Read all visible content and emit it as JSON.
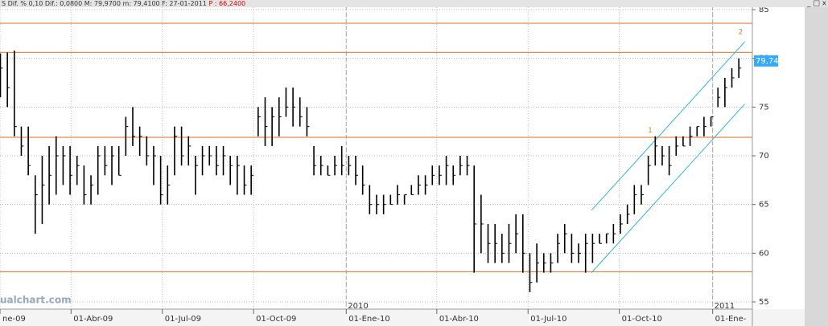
{
  "header": {
    "text": "S Dif. % 0,10 Dif.: 0,0800 M: 79,9700 m: 79,4100 F: 27-01-2011",
    "price": "P : 66,2400"
  },
  "chart_data": {
    "type": "ohlc",
    "high": [
      80.5,
      80.6,
      80.8,
      73,
      73,
      68,
      70,
      71,
      72,
      71,
      71,
      70,
      69,
      68,
      71,
      71,
      71,
      71,
      74,
      75,
      73,
      72,
      71,
      70,
      69,
      73,
      73,
      72,
      70,
      71,
      71,
      71,
      71,
      70,
      70,
      69,
      69,
      75,
      76,
      75,
      76,
      77,
      77,
      76,
      75,
      71,
      70,
      69,
      70,
      71,
      70,
      70,
      69,
      67,
      66,
      66,
      66,
      67,
      66,
      67,
      68,
      68,
      69,
      69,
      70,
      69,
      70,
      70,
      69,
      66,
      63,
      63,
      62,
      63,
      64,
      64,
      60,
      61,
      60,
      60,
      62,
      63,
      62,
      61,
      62,
      62,
      62,
      62,
      63,
      64,
      65,
      67,
      67,
      70,
      72,
      71,
      71,
      72,
      72,
      73,
      73,
      74,
      74,
      77,
      78,
      79,
      80
    ],
    "low": [
      76,
      75,
      72,
      70,
      68,
      62,
      63,
      65,
      66,
      67,
      66,
      67,
      65,
      65,
      66,
      68,
      67,
      68,
      70,
      71,
      70,
      69,
      67,
      65,
      65,
      68,
      69,
      69,
      66,
      68,
      69,
      68,
      68,
      67,
      66,
      66,
      66,
      72,
      71,
      71,
      72,
      74,
      73,
      73,
      72,
      68,
      68,
      68,
      68,
      68,
      68,
      67,
      66,
      64,
      64,
      64,
      65,
      65,
      65,
      66,
      66,
      66,
      67,
      67,
      67,
      67,
      68,
      68,
      58,
      60,
      59,
      59,
      59,
      59,
      60,
      58,
      56,
      57,
      58,
      58,
      59,
      60,
      59,
      59,
      58,
      59,
      61,
      61,
      61,
      62,
      63,
      64,
      65,
      67,
      69,
      69,
      68,
      70,
      71,
      71,
      72,
      72,
      73,
      75,
      75,
      77,
      78
    ],
    "close": [
      79,
      77,
      73,
      71,
      69,
      66,
      67,
      68,
      70,
      70,
      68,
      69,
      66,
      67,
      70,
      69,
      70,
      68,
      73,
      72,
      72,
      70,
      70,
      66,
      67,
      72,
      70,
      71,
      69,
      70,
      70,
      69,
      70,
      69,
      69,
      67,
      68,
      74,
      73,
      74,
      74,
      75,
      75,
      74,
      73,
      69,
      69,
      68,
      69,
      69,
      69,
      68,
      67,
      65,
      65,
      65,
      65,
      66,
      66,
      66,
      67,
      67,
      68,
      68,
      69,
      68,
      69,
      69,
      63,
      63,
      61,
      61,
      60,
      61,
      62,
      60,
      57,
      59,
      59,
      59,
      61,
      62,
      60,
      60,
      61,
      61,
      61,
      62,
      62,
      63,
      64,
      66,
      66,
      69,
      71,
      70,
      69,
      71,
      71,
      72,
      73,
      73,
      74,
      76,
      77,
      78,
      79
    ],
    "xlim": [
      0,
      108
    ],
    "ylim": [
      54.26,
      85.99
    ],
    "yticks": [
      55,
      60,
      65,
      70,
      75,
      80,
      85
    ],
    "xticks": [
      {
        "value": 0,
        "label": "ne-09"
      },
      {
        "value": 10.2,
        "label": "01-Abr-09"
      },
      {
        "value": 23.3,
        "label": "01-Jul-09"
      },
      {
        "value": 36.4,
        "label": "01-Oct-09"
      },
      {
        "value": 49.7,
        "label": "01-Ene-10"
      },
      {
        "value": 62.7,
        "label": "01-Abr-10"
      },
      {
        "value": 75.8,
        "label": "01-Jul-10"
      },
      {
        "value": 88.9,
        "label": "01-Oct-10"
      },
      {
        "value": 102.3,
        "label": "01-Ene-"
      }
    ],
    "year_labels": [
      {
        "value": 49.7,
        "label": "2010"
      },
      {
        "value": 102.3,
        "label": "2011"
      }
    ],
    "hlines": [
      83.6,
      80.6,
      71.9,
      58.1
    ],
    "hline_color": "#e08a50",
    "channel": {
      "color": "#33b5e0",
      "lines": [
        {
          "x": [
            84.9,
            106.9
          ],
          "y": [
            64.4,
            81.7
          ]
        },
        {
          "x": [
            84.9,
            106.9
          ],
          "y": [
            58.0,
            75.3
          ]
        }
      ]
    },
    "annotations": [
      {
        "text": "1",
        "x": 93,
        "y": 72.6
      },
      {
        "text": "2",
        "x": 106,
        "y": 82.7
      }
    ],
    "last_label": {
      "value": 79.74,
      "label": "79,74"
    },
    "watermark": "ualchart.com",
    "grid": true,
    "bar_color": "#000000"
  }
}
